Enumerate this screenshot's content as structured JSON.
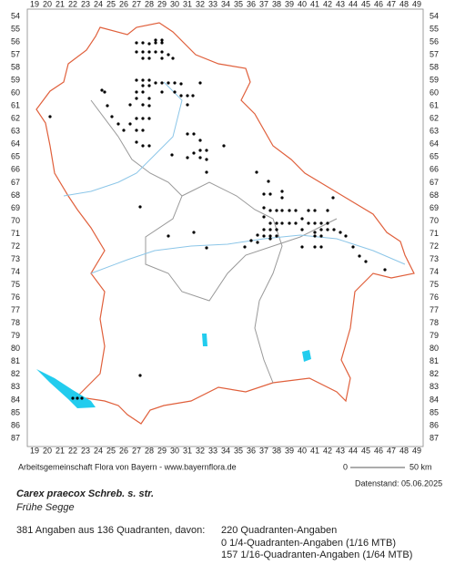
{
  "map": {
    "columns": [
      19,
      20,
      21,
      22,
      23,
      24,
      25,
      26,
      27,
      28,
      29,
      30,
      31,
      32,
      33,
      34,
      35,
      36,
      37,
      38,
      39,
      40,
      41,
      42,
      43,
      44,
      45,
      46,
      47,
      48,
      49
    ],
    "rows": [
      54,
      55,
      56,
      57,
      58,
      59,
      60,
      61,
      62,
      63,
      64,
      65,
      66,
      67,
      68,
      69,
      70,
      71,
      72,
      73,
      74,
      75,
      76,
      77,
      78,
      79,
      80,
      81,
      82,
      83,
      84,
      85,
      86,
      87
    ],
    "scale_start": "0",
    "scale_end": "50 km"
  },
  "footer": {
    "credit": "Arbeitsgemeinschaft Flora von Bayern - www.bayernflora.de",
    "date": "Datenstand: 05.06.2025",
    "title": "Carex praecox Schreb. s. str.",
    "subtitle": "Frühe Segge",
    "summary": "381 Angaben aus 136 Quadranten, davon:",
    "details": [
      "220 Quadranten-Angaben",
      "0 1/4-Quadranten-Angaben (1/16 MTB)",
      "157 1/16-Quadranten-Angaben (1/64 MTB)"
    ]
  }
}
